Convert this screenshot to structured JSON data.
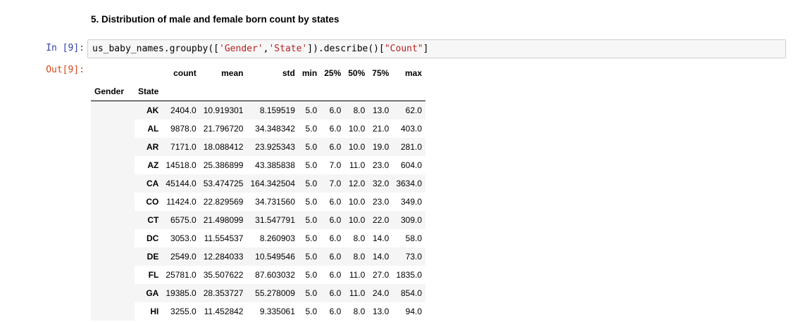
{
  "section_heading": "5. Distribution of male and female born count by states",
  "input_cell": {
    "prompt": "In [9]:",
    "code_parts": [
      {
        "t": "us_baby_names.groupby([",
        "k": "punc"
      },
      {
        "t": "'Gender'",
        "k": "str"
      },
      {
        "t": ",",
        "k": "punc"
      },
      {
        "t": "'State'",
        "k": "str"
      },
      {
        "t": "]).describe()[",
        "k": "punc"
      },
      {
        "t": "\"Count\"",
        "k": "str"
      },
      {
        "t": "]",
        "k": "punc"
      }
    ]
  },
  "output_cell": {
    "prompt": "Out[9]:",
    "index_names": [
      "Gender",
      "State"
    ],
    "columns": [
      "count",
      "mean",
      "std",
      "min",
      "25%",
      "50%",
      "75%",
      "max"
    ],
    "rows": [
      {
        "state": "AK",
        "values": [
          "2404.0",
          "10.919301",
          "8.159519",
          "5.0",
          "6.0",
          "8.0",
          "13.0",
          "62.0"
        ]
      },
      {
        "state": "AL",
        "values": [
          "9878.0",
          "21.796720",
          "34.348342",
          "5.0",
          "6.0",
          "10.0",
          "21.0",
          "403.0"
        ]
      },
      {
        "state": "AR",
        "values": [
          "7171.0",
          "18.088412",
          "23.925343",
          "5.0",
          "6.0",
          "10.0",
          "19.0",
          "281.0"
        ]
      },
      {
        "state": "AZ",
        "values": [
          "14518.0",
          "25.386899",
          "43.385838",
          "5.0",
          "7.0",
          "11.0",
          "23.0",
          "604.0"
        ]
      },
      {
        "state": "CA",
        "values": [
          "45144.0",
          "53.474725",
          "164.342504",
          "5.0",
          "7.0",
          "12.0",
          "32.0",
          "3634.0"
        ]
      },
      {
        "state": "CO",
        "values": [
          "11424.0",
          "22.829569",
          "34.731560",
          "5.0",
          "6.0",
          "10.0",
          "23.0",
          "349.0"
        ]
      },
      {
        "state": "CT",
        "values": [
          "6575.0",
          "21.498099",
          "31.547791",
          "5.0",
          "6.0",
          "10.0",
          "22.0",
          "309.0"
        ]
      },
      {
        "state": "DC",
        "values": [
          "3053.0",
          "11.554537",
          "8.260903",
          "5.0",
          "6.0",
          "8.0",
          "14.0",
          "58.0"
        ]
      },
      {
        "state": "DE",
        "values": [
          "2549.0",
          "12.284033",
          "10.549546",
          "5.0",
          "6.0",
          "8.0",
          "14.0",
          "73.0"
        ]
      },
      {
        "state": "FL",
        "values": [
          "25781.0",
          "35.507622",
          "87.603032",
          "5.0",
          "6.0",
          "11.0",
          "27.0",
          "1835.0"
        ]
      },
      {
        "state": "GA",
        "values": [
          "19385.0",
          "28.353727",
          "55.278009",
          "5.0",
          "6.0",
          "11.0",
          "24.0",
          "854.0"
        ]
      },
      {
        "state": "HI",
        "values": [
          "3255.0",
          "11.452842",
          "9.335061",
          "5.0",
          "6.0",
          "8.0",
          "13.0",
          "94.0"
        ]
      }
    ]
  }
}
